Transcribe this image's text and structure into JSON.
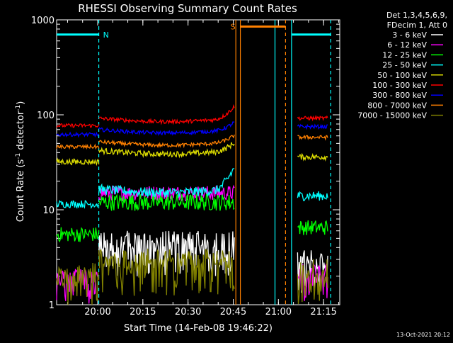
{
  "chart_data": {
    "type": "line",
    "title": "RHESSI Observing Summary Count Rates",
    "xlabel": "Start Time (14-Feb-08 19:46:22)",
    "ylabel_main": "Count Rate (s",
    "ylabel_sup1": "-1",
    "ylabel_mid": " detector",
    "ylabel_sup2": "-1",
    "ylabel_end": ")",
    "yscale": "log",
    "ylim": [
      1,
      1000
    ],
    "xlim_minutes": [
      0,
      94
    ],
    "x_ticks": [
      {
        "minute": 13.63,
        "label": "20:00"
      },
      {
        "minute": 28.63,
        "label": "20:15"
      },
      {
        "minute": 43.63,
        "label": "20:30"
      },
      {
        "minute": 58.63,
        "label": "20:45"
      },
      {
        "minute": 73.63,
        "label": "21:00"
      },
      {
        "minute": 88.63,
        "label": "21:15"
      }
    ],
    "y_ticks": [
      {
        "value": 1,
        "label": "1"
      },
      {
        "value": 10,
        "label": "10"
      },
      {
        "value": 100,
        "label": "100"
      },
      {
        "value": 1000,
        "label": "1000"
      }
    ],
    "legend_header": [
      "Det 1,3,4,5,6,9,",
      "FDecim 1, Att 0"
    ],
    "legend_position": "right",
    "series": [
      {
        "name": "3 - 6 keV",
        "color": "#ffffff",
        "segments": [
          {
            "start": 14,
            "end": 59,
            "base": 3.0,
            "noise": 0.18,
            "spike_to": 5
          },
          {
            "start": 80,
            "end": 90,
            "base": 2.2,
            "noise": 0.25,
            "spike_to": 3
          }
        ]
      },
      {
        "name": "6 - 12 keV",
        "color": "#ff00ff",
        "segments": [
          {
            "start": 0,
            "end": 14,
            "base": 1.5,
            "noise": 0.2,
            "spike_to": 2
          },
          {
            "start": 14,
            "end": 59,
            "base": 15,
            "noise": 0.08
          },
          {
            "start": 80,
            "end": 90,
            "base": 1.7,
            "noise": 0.2,
            "spike_to": 2.3
          }
        ]
      },
      {
        "name": "12 - 25 keV",
        "color": "#00ff00",
        "segments": [
          {
            "start": 0,
            "end": 14,
            "base": 5.5,
            "noise": 0.08
          },
          {
            "start": 14,
            "end": 59,
            "base": 12,
            "noise": 0.09
          },
          {
            "start": 80,
            "end": 90,
            "base": 6.5,
            "noise": 0.08
          }
        ]
      },
      {
        "name": "25 - 50 keV",
        "color": "#00ffff",
        "segments": [
          {
            "start": 0,
            "end": 14,
            "base": 11.5,
            "noise": 0.04
          },
          {
            "start": 14,
            "end": 59,
            "base": 16.5,
            "noise": 0.05,
            "rise_end": 28
          },
          {
            "start": 80,
            "end": 90,
            "base": 14,
            "noise": 0.05
          }
        ]
      },
      {
        "name": "50 - 100 keV",
        "color": "#dddd00",
        "segments": [
          {
            "start": 0,
            "end": 14,
            "base": 32,
            "noise": 0.03
          },
          {
            "start": 14,
            "end": 59,
            "base": 42,
            "noise": 0.03,
            "rise_end": 52
          },
          {
            "start": 80,
            "end": 90,
            "base": 36,
            "noise": 0.03
          }
        ]
      },
      {
        "name": "100 - 300 keV",
        "color": "#ff0000",
        "segments": [
          {
            "start": 0,
            "end": 14,
            "base": 77,
            "noise": 0.02
          },
          {
            "start": 14,
            "end": 59,
            "base": 92,
            "noise": 0.02,
            "rise_end": 125
          },
          {
            "start": 80,
            "end": 90,
            "base": 92,
            "noise": 0.02
          }
        ]
      },
      {
        "name": "300 - 800 keV",
        "color": "#0000ff",
        "segments": [
          {
            "start": 0,
            "end": 14,
            "base": 62,
            "noise": 0.02
          },
          {
            "start": 14,
            "end": 59,
            "base": 70,
            "noise": 0.02,
            "rise_end": 85
          },
          {
            "start": 80,
            "end": 90,
            "base": 75,
            "noise": 0.02
          }
        ]
      },
      {
        "name": "800 - 7000 keV",
        "color": "#ff8000",
        "segments": [
          {
            "start": 0,
            "end": 14,
            "base": 46,
            "noise": 0.02
          },
          {
            "start": 14,
            "end": 59,
            "base": 52,
            "noise": 0.02,
            "rise_end": 62
          },
          {
            "start": 80,
            "end": 90,
            "base": 58,
            "noise": 0.02
          }
        ]
      },
      {
        "name": "7000 - 15000 keV",
        "color": "#808000",
        "segments": [
          {
            "start": 0,
            "end": 14,
            "base": 1.6,
            "noise": 0.25,
            "spike_to": 2
          },
          {
            "start": 14,
            "end": 59,
            "base": 2.2,
            "noise": 0.25,
            "spike_to": 3
          },
          {
            "start": 80,
            "end": 90,
            "base": 1.8,
            "noise": 0.25,
            "spike_to": 2
          }
        ]
      }
    ],
    "annotations": {
      "night_bars": [
        {
          "start": 0,
          "end": 14,
          "value": 700,
          "color": "#00ffff",
          "label": "N"
        },
        {
          "start": 78,
          "end": 91,
          "value": 700,
          "color": "#00ffff",
          "label": ""
        }
      ],
      "saa_bar": {
        "start": 61,
        "end": 76,
        "value": 850,
        "color": "#ff8000",
        "label": "S"
      },
      "vlines": [
        {
          "minute": 14,
          "color": "#00ffff",
          "dashed": true
        },
        {
          "minute": 91,
          "color": "#00ffff",
          "dashed": true
        },
        {
          "minute": 59.5,
          "color": "#ff8000",
          "dashed": false
        },
        {
          "minute": 61,
          "color": "#ff8000",
          "dashed": false
        },
        {
          "minute": 76,
          "color": "#ff8000",
          "dashed": true
        },
        {
          "minute": 72.5,
          "color": "#00ffff",
          "dashed": false
        },
        {
          "minute": 78,
          "color": "#00ffff",
          "dashed": false
        }
      ]
    },
    "footer_timestamp": "13-Oct-2021 20:12"
  }
}
